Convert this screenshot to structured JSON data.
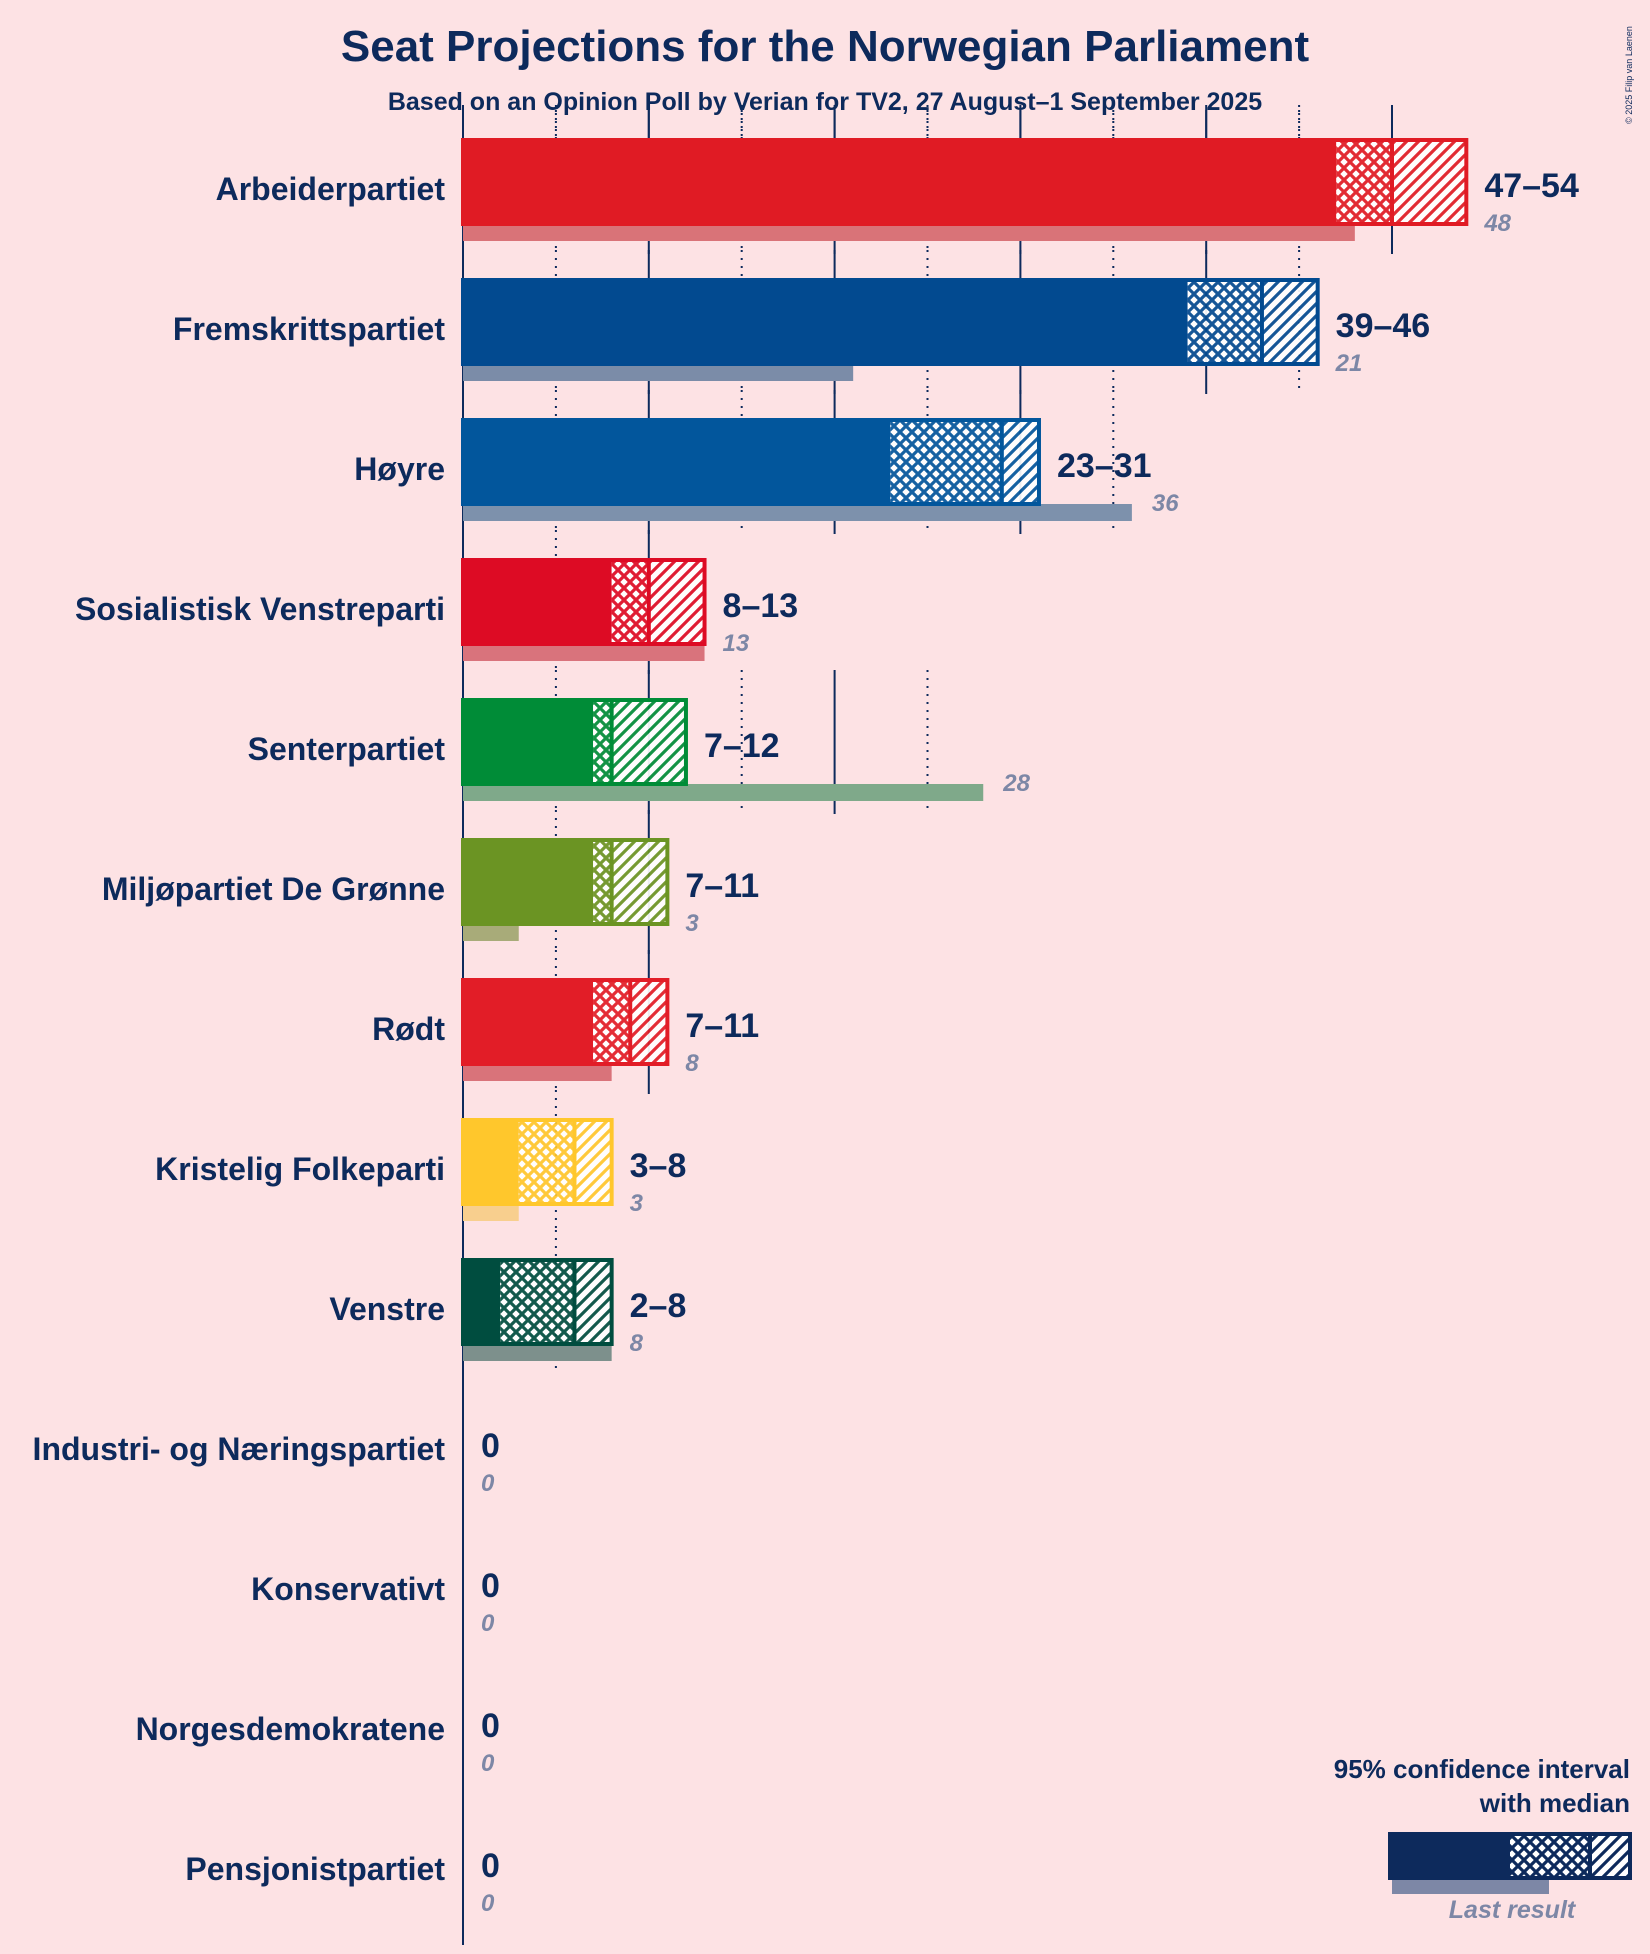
{
  "chart_data": {
    "type": "bar",
    "title": "Seat Projections for the Norwegian Parliament",
    "subtitle": "Based on an Opinion Poll by Verian for TV2, 27 August–1 September 2025",
    "copyright": "© 2025 Filip van Laenen",
    "xlabel": "",
    "ylabel": "",
    "xlim": [
      0,
      55
    ],
    "gridlines_major": [
      0,
      10,
      20,
      30,
      40,
      50
    ],
    "gridlines_minor": [
      5,
      15,
      25,
      35,
      45
    ],
    "parties": [
      {
        "name": "Arbeiderpartiet",
        "low": 47,
        "median": 50,
        "high": 54,
        "range_label": "47–54",
        "last_result": 48,
        "last_label": "48",
        "color": "#e01b24",
        "last_color": "#d97378"
      },
      {
        "name": "Fremskrittspartiet",
        "low": 39,
        "median": 43,
        "high": 46,
        "range_label": "39–46",
        "last_result": 21,
        "last_label": "21",
        "color": "#024a90",
        "last_color": "#7b8ca8"
      },
      {
        "name": "Høyre",
        "low": 23,
        "median": 29,
        "high": 31,
        "range_label": "23–31",
        "last_result": 36,
        "last_label": "36",
        "color": "#02569c",
        "last_color": "#7d91ac"
      },
      {
        "name": "Sosialistisk Venstreparti",
        "low": 8,
        "median": 10,
        "high": 13,
        "range_label": "8–13",
        "last_result": 13,
        "last_label": "13",
        "color": "#dd0b24",
        "last_color": "#d9737c"
      },
      {
        "name": "Senterpartiet",
        "low": 7,
        "median": 8,
        "high": 12,
        "range_label": "7–12",
        "last_result": 28,
        "last_label": "28",
        "color": "#008c37",
        "last_color": "#7fa98a"
      },
      {
        "name": "Miljøpartiet De Grønne",
        "low": 7,
        "median": 8,
        "high": 11,
        "range_label": "7–11",
        "last_result": 3,
        "last_label": "3",
        "color": "#6b9423",
        "last_color": "#a8ab79"
      },
      {
        "name": "Rødt",
        "low": 7,
        "median": 9,
        "high": 11,
        "range_label": "7–11",
        "last_result": 8,
        "last_label": "8",
        "color": "#e21d27",
        "last_color": "#d9737a"
      },
      {
        "name": "Kristelig Folkeparti",
        "low": 3,
        "median": 6,
        "high": 8,
        "range_label": "3–8",
        "last_result": 3,
        "last_label": "3",
        "color": "#ffc72c",
        "last_color": "#f8cf8e"
      },
      {
        "name": "Venstre",
        "low": 2,
        "median": 6,
        "high": 8,
        "range_label": "2–8",
        "last_result": 8,
        "last_label": "8",
        "color": "#004d3f",
        "last_color": "#7d908c"
      },
      {
        "name": "Industri- og Næringspartiet",
        "low": 0,
        "median": 0,
        "high": 0,
        "range_label": "0",
        "last_result": 0,
        "last_label": "0",
        "color": "#0d2a5c",
        "last_color": "#7d87a6"
      },
      {
        "name": "Konservativt",
        "low": 0,
        "median": 0,
        "high": 0,
        "range_label": "0",
        "last_result": 0,
        "last_label": "0",
        "color": "#0d2a5c",
        "last_color": "#7d87a6"
      },
      {
        "name": "Norgesdemokratene",
        "low": 0,
        "median": 0,
        "high": 0,
        "range_label": "0",
        "last_result": 0,
        "last_label": "0",
        "color": "#0d2a5c",
        "last_color": "#7d87a6"
      },
      {
        "name": "Pensjonistpartiet",
        "low": 0,
        "median": 0,
        "high": 0,
        "range_label": "0",
        "last_result": 0,
        "last_label": "0",
        "color": "#0d2a5c",
        "last_color": "#7d87a6"
      }
    ]
  },
  "legend": {
    "title_line1": "95% confidence interval",
    "title_line2": "with median",
    "last_result_label": "Last result",
    "color": "#0d2a5c",
    "last_color": "#7d87a6"
  }
}
